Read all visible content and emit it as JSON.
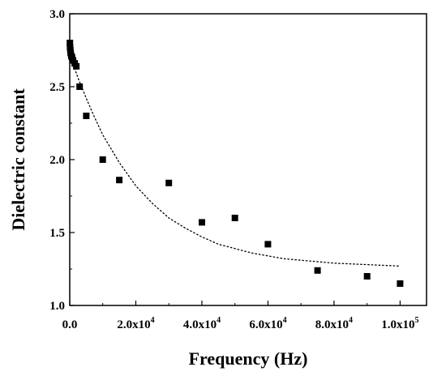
{
  "chart_data": {
    "type": "scatter",
    "xlabel": "Frequency (Hz)",
    "ylabel": "Dielectric constant",
    "xlim": [
      0,
      108000
    ],
    "ylim": [
      1.0,
      3.0
    ],
    "x_ticks": [
      {
        "value": 0,
        "label": "0.0",
        "sup": ""
      },
      {
        "value": 20000,
        "label": "2.0x10",
        "sup": "4"
      },
      {
        "value": 40000,
        "label": "4.0x10",
        "sup": "4"
      },
      {
        "value": 60000,
        "label": "6.0x10",
        "sup": "4"
      },
      {
        "value": 80000,
        "label": "8.0x10",
        "sup": "4"
      },
      {
        "value": 100000,
        "label": "1.0x10",
        "sup": "5"
      }
    ],
    "y_ticks": [
      {
        "value": 1.0,
        "label": "1.0"
      },
      {
        "value": 1.5,
        "label": "1.5"
      },
      {
        "value": 2.0,
        "label": "2.0"
      },
      {
        "value": 2.5,
        "label": "2.5"
      },
      {
        "value": 3.0,
        "label": "3.0"
      }
    ],
    "series": [
      {
        "type": "scatter",
        "marker": "square",
        "color": "#000000",
        "x": [
          50,
          100,
          200,
          300,
          500,
          700,
          1000,
          1500,
          2000,
          3000,
          5000,
          10000,
          15000,
          30000,
          40000,
          50000,
          60000,
          75000,
          90000,
          100000
        ],
        "y": [
          2.8,
          2.77,
          2.75,
          2.73,
          2.71,
          2.7,
          2.68,
          2.66,
          2.64,
          2.5,
          2.3,
          2.0,
          1.86,
          1.84,
          1.57,
          1.6,
          1.42,
          1.24,
          1.2,
          1.15
        ]
      },
      {
        "type": "line",
        "style": "dotted",
        "color": "#000000",
        "x": [
          0,
          2500,
          5000,
          7500,
          10000,
          15000,
          20000,
          25000,
          30000,
          35000,
          40000,
          45000,
          50000,
          55000,
          60000,
          65000,
          70000,
          75000,
          80000,
          85000,
          90000,
          95000,
          100000
        ],
        "y": [
          2.72,
          2.56,
          2.42,
          2.29,
          2.17,
          1.98,
          1.82,
          1.7,
          1.6,
          1.53,
          1.47,
          1.42,
          1.39,
          1.36,
          1.34,
          1.32,
          1.31,
          1.3,
          1.29,
          1.285,
          1.28,
          1.275,
          1.27
        ]
      }
    ],
    "grid": false,
    "legend": "none"
  }
}
